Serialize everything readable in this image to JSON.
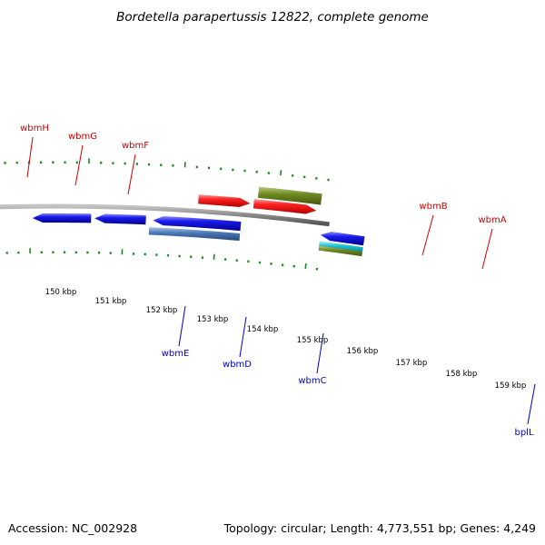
{
  "title": "Bordetella parapertussis 12822, complete genome",
  "footer": {
    "accession": "Accession: NC_002928",
    "summary": "Topology: circular; Length: 4,773,551 bp; Genes: 4,249"
  },
  "colors": {
    "forward_label": "#cc0000",
    "reverse_label": "#0000cc",
    "tick": "#1a8a1a",
    "backbone": "#8a8a8a",
    "red": "#ee1111",
    "cyan": "#22c8d8",
    "olive": "#6f8a22",
    "blue": "#1a1aee",
    "steelblue": "#4a7ab8"
  },
  "scale_labels": [
    "150 kbp",
    "151 kbp",
    "152 kbp",
    "153 kbp",
    "154 kbp",
    "155 kbp",
    "156 kbp",
    "157 kbp",
    "158 kbp",
    "159 kbp"
  ],
  "gene_labels": [
    {
      "text": "wbmH",
      "strand": "forward"
    },
    {
      "text": "wbmG",
      "strand": "forward"
    },
    {
      "text": "wbmF",
      "strand": "forward"
    },
    {
      "text": "wbmB",
      "strand": "forward"
    },
    {
      "text": "wbmA",
      "strand": "forward"
    },
    {
      "text": "wbmE",
      "strand": "reverse"
    },
    {
      "text": "wbmD",
      "strand": "reverse"
    },
    {
      "text": "wbmC",
      "strand": "reverse"
    },
    {
      "text": "bplL",
      "strand": "reverse"
    }
  ]
}
